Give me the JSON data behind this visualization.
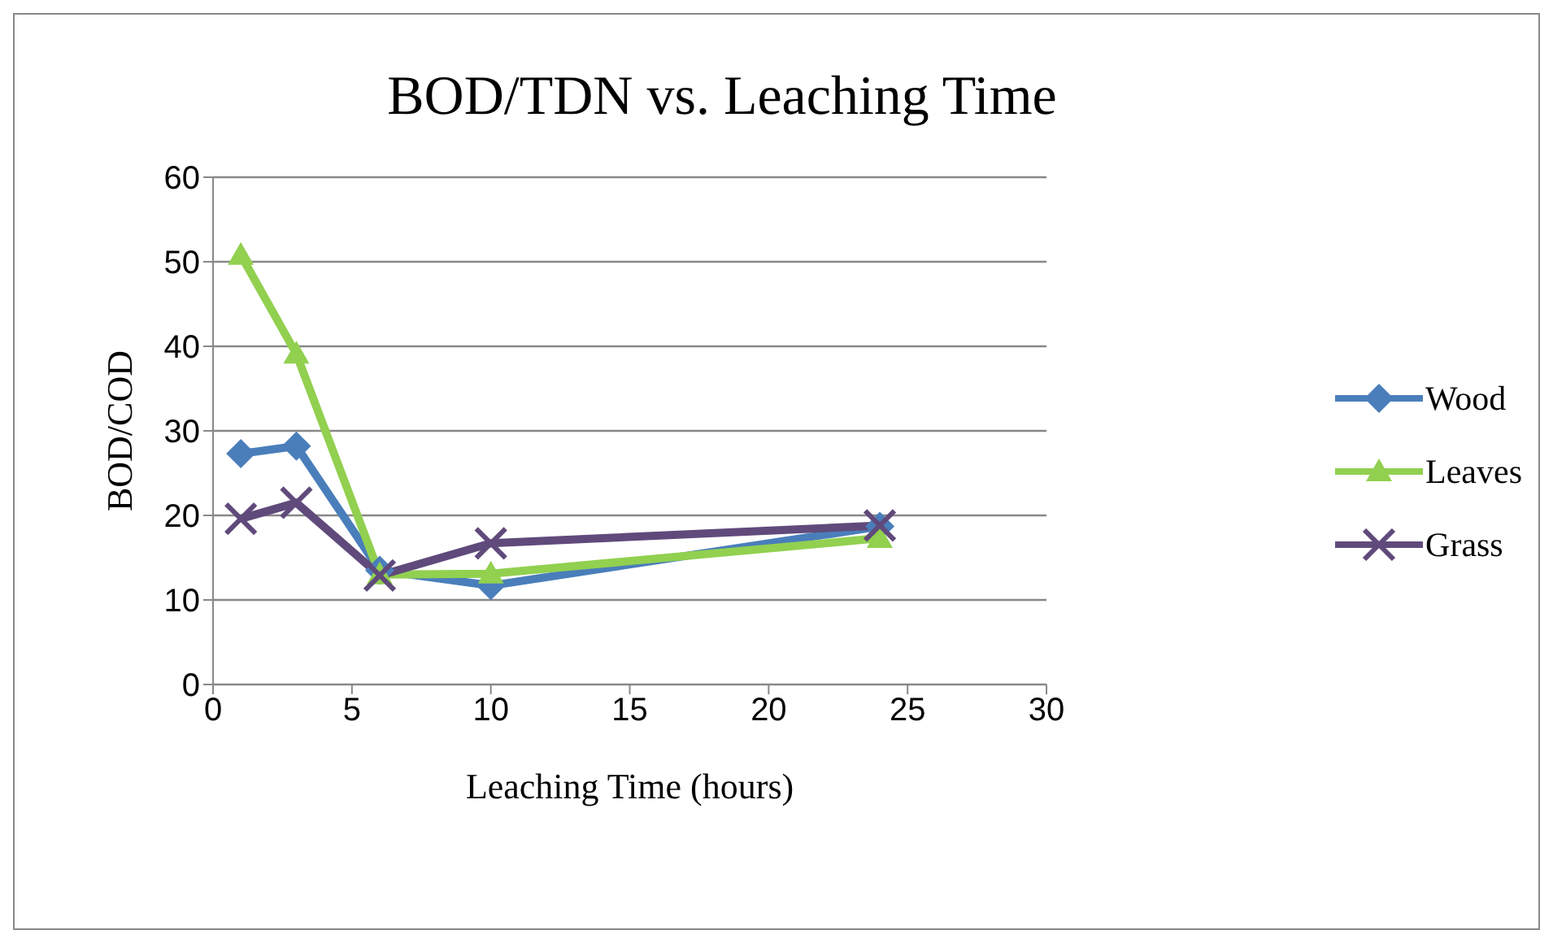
{
  "chart_data": {
    "type": "line",
    "title": "BOD/TDN vs. Leaching Time",
    "xlabel": "Leaching Time (hours)",
    "ylabel": "BOD/COD",
    "x": [
      1,
      3,
      6,
      10,
      24
    ],
    "series": [
      {
        "name": "Wood",
        "color": "#4a7ebb",
        "marker": "diamond",
        "values": [
          27.3,
          28.2,
          13.5,
          11.7,
          18.7
        ]
      },
      {
        "name": "Leaves",
        "color": "#92d050",
        "marker": "triangle",
        "values": [
          50.8,
          39.1,
          13.0,
          13.1,
          17.3
        ]
      },
      {
        "name": "Grass",
        "color": "#604a7b",
        "marker": "cross",
        "values": [
          19.6,
          21.5,
          12.9,
          16.7,
          18.8
        ]
      }
    ],
    "xlim": [
      0,
      30
    ],
    "xticks": [
      0,
      5,
      10,
      15,
      20,
      25,
      30
    ],
    "ylim": [
      0,
      60
    ],
    "yticks": [
      0,
      10,
      20,
      30,
      40,
      50,
      60
    ],
    "grid": "y",
    "legend": "right",
    "line_style": "solid"
  }
}
